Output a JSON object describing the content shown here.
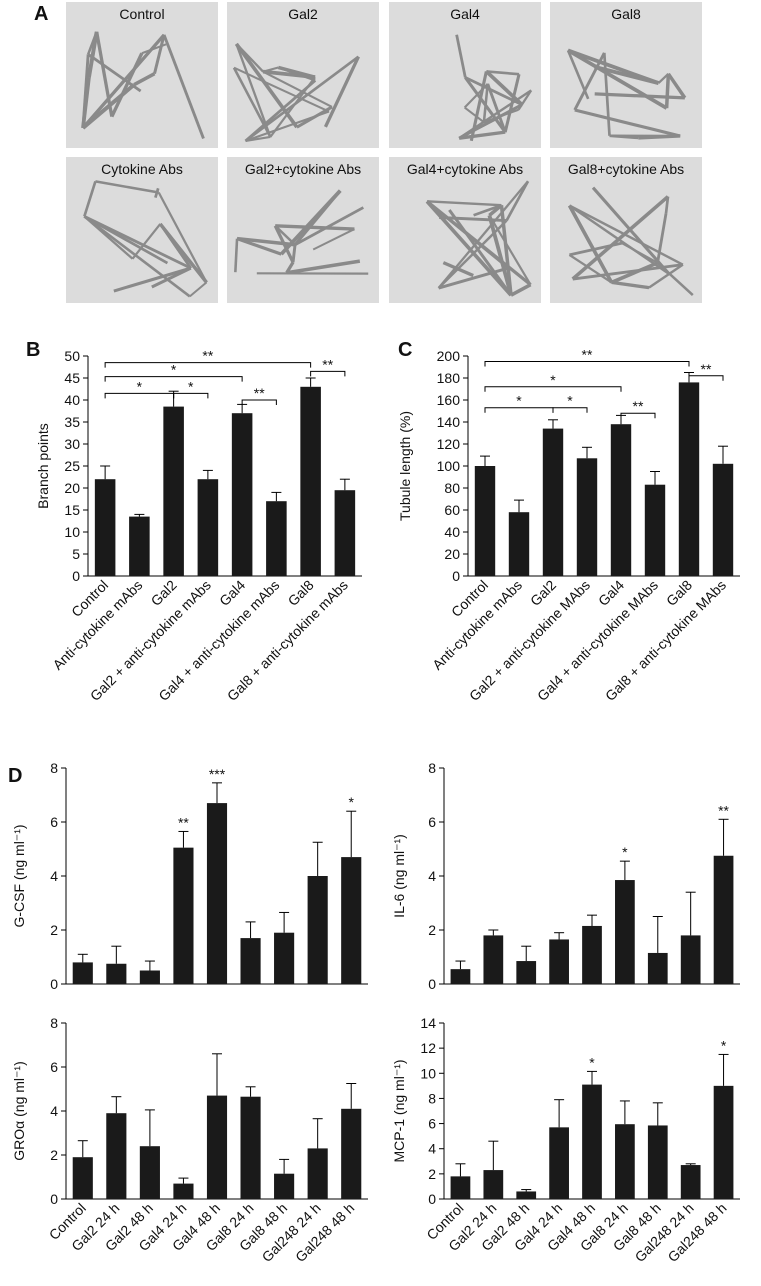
{
  "panel_labels": [
    "A",
    "B",
    "C",
    "D"
  ],
  "micrographs": [
    "Control",
    "Gal2",
    "Gal4",
    "Gal8",
    "Cytokine Abs",
    "Gal2+cytokine Abs",
    "Gal4+cytokine Abs",
    "Gal8+cytokine Abs"
  ],
  "chart_data": [
    {
      "type": "bar",
      "y_label": "Branch points",
      "color": "#1a1a1a",
      "categories": [
        "Control",
        "Anti-cytokine mAbs",
        "Gal2",
        "Gal2 + anti-cytokine mAbs",
        "Gal4",
        "Gal4 + anti-cytokine mAbs",
        "Gal8",
        "Gal8 + anti-cytokine mAbs"
      ],
      "values": [
        22,
        13.5,
        38.5,
        22,
        37,
        17,
        43,
        19.5
      ],
      "errors": [
        3,
        0.5,
        3.5,
        2,
        2,
        2,
        2,
        2.5
      ],
      "ylim": [
        0,
        50
      ],
      "yticks": [
        0,
        5,
        10,
        15,
        20,
        25,
        30,
        35,
        40,
        45,
        50
      ],
      "annotations": [
        "**",
        "*",
        "*",
        "*",
        "**",
        "**"
      ]
    },
    {
      "type": "bar",
      "y_label": "Tubule length (%)",
      "color": "#1a1a1a",
      "categories": [
        "Control",
        "Anti-cytokine mAbs",
        "Gal2",
        "Gal2 + anti-cytokine MAbs",
        "Gal4",
        "Gal4 + anti-cytokine MAbs",
        "Gal8",
        "Gal8 + anti-cytokine MAbs"
      ],
      "values": [
        100,
        58,
        134,
        107,
        138,
        83,
        176,
        102
      ],
      "errors": [
        9,
        11,
        8,
        10,
        8,
        12,
        9,
        16
      ],
      "ylim": [
        0,
        200
      ],
      "yticks": [
        0,
        20,
        40,
        60,
        80,
        100,
        120,
        140,
        160,
        180,
        200
      ],
      "annotations": [
        "**",
        "*",
        "*",
        "*",
        "**",
        "**"
      ]
    },
    {
      "type": "bar",
      "y_label": "G-CSF (ng ml⁻¹)",
      "color": "#1a1a1a",
      "values": [
        0.8,
        0.75,
        0.5,
        5.05,
        6.7,
        1.7,
        1.9,
        4.0,
        4.7
      ],
      "errors": [
        0.3,
        0.65,
        0.35,
        0.6,
        0.75,
        0.6,
        0.75,
        1.25,
        1.7
      ],
      "stars": [
        null,
        null,
        null,
        "**",
        "***",
        null,
        null,
        null,
        "*"
      ],
      "ylim": [
        0,
        8
      ],
      "yticks": [
        0,
        2,
        4,
        6,
        8
      ]
    },
    {
      "type": "bar",
      "y_label": "IL-6 (ng ml⁻¹)",
      "color": "#1a1a1a",
      "values": [
        0.55,
        1.8,
        0.85,
        1.65,
        2.15,
        3.85,
        1.15,
        1.8,
        4.75
      ],
      "errors": [
        0.3,
        0.2,
        0.55,
        0.25,
        0.4,
        0.7,
        1.35,
        1.6,
        1.35
      ],
      "stars": [
        null,
        null,
        null,
        null,
        null,
        "*",
        null,
        null,
        "**"
      ],
      "ylim": [
        0,
        8
      ],
      "yticks": [
        0,
        2,
        4,
        6,
        8
      ]
    },
    {
      "type": "bar",
      "y_label": "GROα (ng ml⁻¹)",
      "color": "#1a1a1a",
      "categories": [
        "Control",
        "Gal2 24 h",
        "Gal2 48 h",
        "Gal4 24 h",
        "Gal4 48 h",
        "Gal8 24 h",
        "Gal8 48 h",
        "Gal248 24 h",
        "Gal248 48 h"
      ],
      "values": [
        1.9,
        3.9,
        2.4,
        0.7,
        4.7,
        4.65,
        1.15,
        2.3,
        4.1
      ],
      "errors": [
        0.75,
        0.75,
        1.65,
        0.25,
        1.9,
        0.45,
        0.65,
        1.35,
        1.15
      ],
      "ylim": [
        0,
        8
      ],
      "yticks": [
        0,
        2,
        4,
        6,
        8
      ]
    },
    {
      "type": "bar",
      "y_label": "MCP-1 (ng ml⁻¹)",
      "color": "#1a1a1a",
      "categories": [
        "Control",
        "Gal2 24 h",
        "Gal2 48 h",
        "Gal4 24 h",
        "Gal4 48 h",
        "Gal8 24 h",
        "Gal8 48 h",
        "Gal248 24 h",
        "Gal248 48 h"
      ],
      "values": [
        1.8,
        2.3,
        0.6,
        5.7,
        9.1,
        5.95,
        5.85,
        2.7,
        9.0
      ],
      "errors": [
        1.0,
        2.3,
        0.15,
        2.2,
        1.05,
        1.85,
        1.8,
        0.1,
        2.5
      ],
      "stars": [
        null,
        null,
        null,
        null,
        "*",
        null,
        null,
        null,
        "*"
      ],
      "ylim": [
        0,
        14
      ],
      "yticks": [
        0,
        2,
        4,
        6,
        8,
        10,
        12,
        14
      ]
    }
  ]
}
